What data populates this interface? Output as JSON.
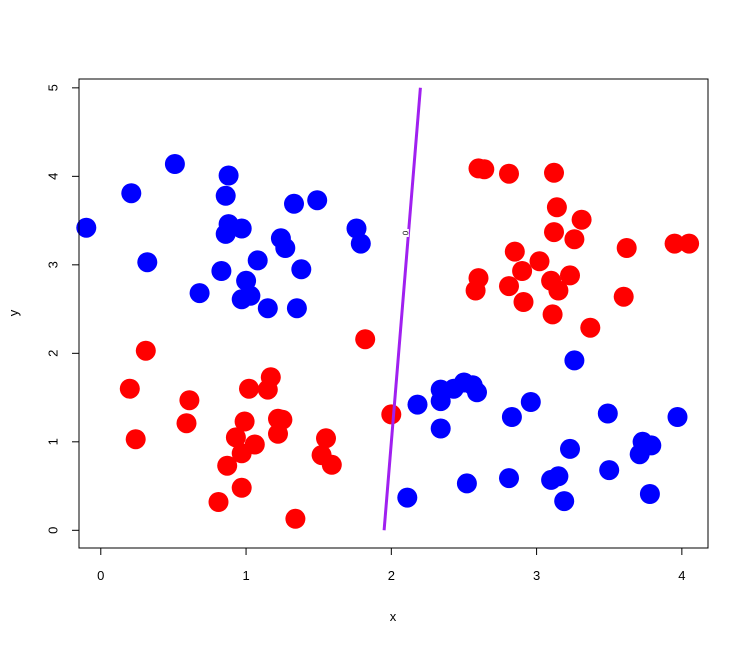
{
  "chart_data": {
    "type": "scatter",
    "title": "",
    "xlabel": "x",
    "ylabel": "y",
    "xlim": [
      -0.15,
      4.18
    ],
    "ylim": [
      -0.2,
      5.1
    ],
    "xticks": [
      "0",
      "1",
      "2",
      "3",
      "4"
    ],
    "yticks": [
      "0",
      "1",
      "2",
      "3",
      "4",
      "5"
    ],
    "xtick_values": [
      0,
      1,
      2,
      3,
      4
    ],
    "ytick_values": [
      0,
      1,
      2,
      3,
      4,
      5
    ],
    "grid": false,
    "legend": "none",
    "series": [
      {
        "color": "#0000ff",
        "points": [
          [
            -0.1,
            3.42
          ],
          [
            0.21,
            3.81
          ],
          [
            0.32,
            3.03
          ],
          [
            0.51,
            4.14
          ],
          [
            0.68,
            2.68
          ],
          [
            0.83,
            2.93
          ],
          [
            0.86,
            3.78
          ],
          [
            0.86,
            3.35
          ],
          [
            0.88,
            4.01
          ],
          [
            0.88,
            3.46
          ],
          [
            0.97,
            3.41
          ],
          [
            0.97,
            2.61
          ],
          [
            1.0,
            2.82
          ],
          [
            1.03,
            2.65
          ],
          [
            1.08,
            3.05
          ],
          [
            1.15,
            2.51
          ],
          [
            1.24,
            3.3
          ],
          [
            1.27,
            3.19
          ],
          [
            1.33,
            3.69
          ],
          [
            1.35,
            2.51
          ],
          [
            1.38,
            2.95
          ],
          [
            1.49,
            3.73
          ],
          [
            1.76,
            3.41
          ],
          [
            1.79,
            3.24
          ],
          [
            2.11,
            0.37
          ],
          [
            2.18,
            1.42
          ],
          [
            2.34,
            1.59
          ],
          [
            2.34,
            1.46
          ],
          [
            2.34,
            1.15
          ],
          [
            2.43,
            1.6
          ],
          [
            2.5,
            1.67
          ],
          [
            2.52,
            0.53
          ],
          [
            2.56,
            1.64
          ],
          [
            2.59,
            1.56
          ],
          [
            2.81,
            0.59
          ],
          [
            2.83,
            1.28
          ],
          [
            2.96,
            1.45
          ],
          [
            3.1,
            0.57
          ],
          [
            3.15,
            0.61
          ],
          [
            3.19,
            0.33
          ],
          [
            3.23,
            0.92
          ],
          [
            3.26,
            1.92
          ],
          [
            3.49,
            1.32
          ],
          [
            3.5,
            0.68
          ],
          [
            3.71,
            0.86
          ],
          [
            3.73,
            1.0
          ],
          [
            3.78,
            0.41
          ],
          [
            3.79,
            0.96
          ],
          [
            3.97,
            1.28
          ]
        ]
      },
      {
        "color": "#ff0000",
        "points": [
          [
            0.2,
            1.6
          ],
          [
            0.24,
            1.03
          ],
          [
            0.31,
            2.03
          ],
          [
            0.59,
            1.21
          ],
          [
            0.61,
            1.47
          ],
          [
            0.81,
            0.32
          ],
          [
            0.87,
            0.73
          ],
          [
            0.93,
            1.05
          ],
          [
            0.97,
            0.48
          ],
          [
            0.97,
            0.87
          ],
          [
            0.99,
            1.23
          ],
          [
            1.02,
            1.6
          ],
          [
            1.06,
            0.97
          ],
          [
            1.15,
            1.59
          ],
          [
            1.17,
            1.73
          ],
          [
            1.22,
            1.26
          ],
          [
            1.22,
            1.09
          ],
          [
            1.25,
            1.25
          ],
          [
            1.34,
            0.13
          ],
          [
            1.52,
            0.85
          ],
          [
            1.55,
            1.04
          ],
          [
            1.59,
            0.74
          ],
          [
            1.82,
            2.16
          ],
          [
            2.0,
            1.31
          ],
          [
            2.58,
            2.71
          ],
          [
            2.6,
            2.85
          ],
          [
            2.6,
            4.09
          ],
          [
            2.64,
            4.08
          ],
          [
            2.81,
            4.03
          ],
          [
            2.81,
            2.76
          ],
          [
            2.85,
            3.15
          ],
          [
            2.9,
            2.93
          ],
          [
            2.91,
            2.58
          ],
          [
            3.02,
            3.04
          ],
          [
            3.1,
            2.82
          ],
          [
            3.11,
            2.44
          ],
          [
            3.12,
            4.04
          ],
          [
            3.12,
            3.37
          ],
          [
            3.14,
            3.65
          ],
          [
            3.15,
            2.71
          ],
          [
            3.23,
            2.88
          ],
          [
            3.26,
            3.29
          ],
          [
            3.31,
            3.51
          ],
          [
            3.37,
            2.29
          ],
          [
            3.6,
            2.64
          ],
          [
            3.62,
            3.19
          ],
          [
            3.95,
            3.24
          ],
          [
            4.05,
            3.24
          ]
        ]
      }
    ],
    "contour": {
      "color": "#a020f0",
      "label": "0",
      "points": [
        [
          1.95,
          0.0
        ],
        [
          2.2,
          5.0
        ]
      ],
      "label_point": [
        2.1,
        3.36
      ]
    }
  }
}
